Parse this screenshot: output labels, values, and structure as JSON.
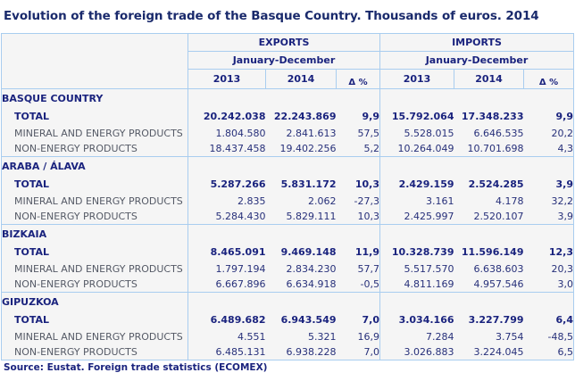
{
  "title": "Evolution of the foreign trade of the Basque Country. Thousands of euros. 2014",
  "header": {
    "exports": "EXPORTS",
    "imports": "IMPORTS",
    "period_exports": "January-December",
    "period_imports": "January-December",
    "years": [
      "2013",
      "2014",
      "Δ %",
      "2013",
      "2014",
      "Δ %"
    ]
  },
  "sections": [
    {
      "name": "BASQUE COUNTRY",
      "rows": [
        {
          "label": "TOTAL",
          "exp_2013": "20.242.038",
          "exp_2014": "22.243.869",
          "exp_delta": "9,9",
          "imp_2013": "15.792.064",
          "imp_2014": "17.348.233",
          "imp_delta": "9,9"
        },
        {
          "label": "MINERAL AND ENERGY PRODUCTS",
          "exp_2013": "1.804.580",
          "exp_2014": "2.841.613",
          "exp_delta": "57,5",
          "imp_2013": "5.528.015",
          "imp_2014": "6.646.535",
          "imp_delta": "20,2"
        },
        {
          "label": "NON-ENERGY PRODUCTS",
          "exp_2013": "18.437.458",
          "exp_2014": "19.402.256",
          "exp_delta": "5,2",
          "imp_2013": "10.264.049",
          "imp_2014": "10.701.698",
          "imp_delta": "4,3"
        }
      ]
    },
    {
      "name": "ARABA / ÁLAVA",
      "rows": [
        {
          "label": "TOTAL",
          "exp_2013": "5.287.266",
          "exp_2014": "5.831.172",
          "exp_delta": "10,3",
          "imp_2013": "2.429.159",
          "imp_2014": "2.524.285",
          "imp_delta": "3,9"
        },
        {
          "label": "MINERAL AND ENERGY PRODUCTS",
          "exp_2013": "2.835",
          "exp_2014": "2.062",
          "exp_delta": "-27,3",
          "imp_2013": "3.161",
          "imp_2014": "4.178",
          "imp_delta": "32,2"
        },
        {
          "label": "NON-ENERGY PRODUCTS",
          "exp_2013": "5.284.430",
          "exp_2014": "5.829.111",
          "exp_delta": "10,3",
          "imp_2013": "2.425.997",
          "imp_2014": "2.520.107",
          "imp_delta": "3,9"
        }
      ]
    },
    {
      "name": "BIZKAIA",
      "rows": [
        {
          "label": "TOTAL",
          "exp_2013": "8.465.091",
          "exp_2014": "9.469.148",
          "exp_delta": "11,9",
          "imp_2013": "10.328.739",
          "imp_2014": "11.596.149",
          "imp_delta": "12,3"
        },
        {
          "label": "MINERAL AND ENERGY PRODUCTS",
          "exp_2013": "1.797.194",
          "exp_2014": "2.834.230",
          "exp_delta": "57,7",
          "imp_2013": "5.517.570",
          "imp_2014": "6.638.603",
          "imp_delta": "20,3"
        },
        {
          "label": "NON-ENERGY PRODUCTS",
          "exp_2013": "6.667.896",
          "exp_2014": "6.634.918",
          "exp_delta": "-0,5",
          "imp_2013": "4.811.169",
          "imp_2014": "4.957.546",
          "imp_delta": "3,0"
        }
      ]
    },
    {
      "name": "GIPUZKOA",
      "rows": [
        {
          "label": "TOTAL",
          "exp_2013": "6.489.682",
          "exp_2014": "6.943.549",
          "exp_delta": "7,0",
          "imp_2013": "3.034.166",
          "imp_2014": "3.227.799",
          "imp_delta": "6,4"
        },
        {
          "label": "MINERAL AND ENERGY PRODUCTS",
          "exp_2013": "4.551",
          "exp_2014": "5.321",
          "exp_delta": "16,9",
          "imp_2013": "7.284",
          "imp_2014": "3.754",
          "imp_delta": "-48,5"
        },
        {
          "label": "NON-ENERGY PRODUCTS",
          "exp_2013": "6.485.131",
          "exp_2014": "6.938.228",
          "exp_delta": "7,0",
          "imp_2013": "3.026.883",
          "imp_2014": "3.224.045",
          "imp_delta": "6,5"
        }
      ]
    }
  ],
  "source": "Source: Eustat. Foreign trade statistics (ECOMEX)",
  "colors": {
    "title": "#1a2a6c",
    "header_text": "#1a237e",
    "border": "#a9cdef",
    "cell_bg": "#f5f5f5",
    "label_text": "#555a66"
  }
}
